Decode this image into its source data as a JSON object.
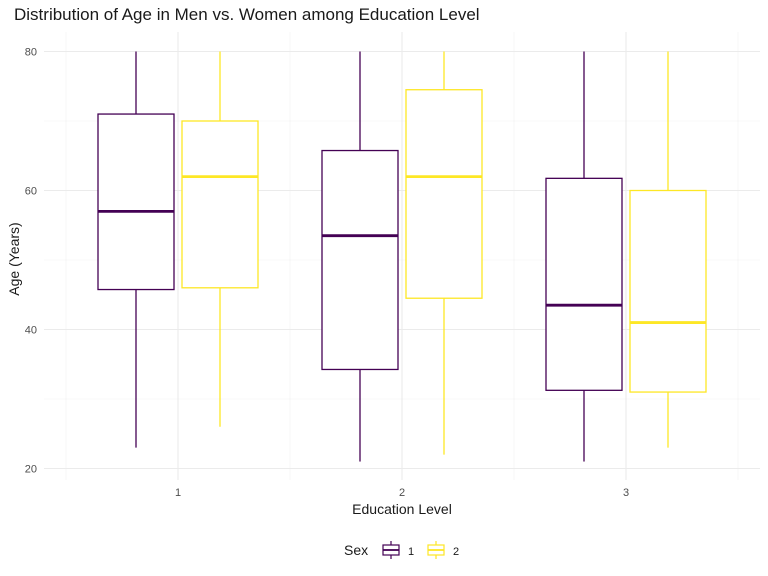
{
  "chart_data": {
    "type": "boxplot",
    "title": "Distribution of Age in Men vs. Women among Education Level",
    "xlabel": "Education Level",
    "ylabel": "Age (Years)",
    "categories": [
      "1",
      "2",
      "3"
    ],
    "ylim": [
      20,
      80
    ],
    "yticks": [
      20,
      40,
      60,
      80
    ],
    "yticks_labels": [
      "20",
      "40",
      "60",
      "80"
    ],
    "grid": true,
    "legend": {
      "title": "Sex",
      "position": "bottom"
    },
    "series": [
      {
        "name": "1",
        "color": "#440154",
        "boxes": [
          {
            "whisker_low": 23,
            "q1": 45.75,
            "median": 57,
            "q3": 71,
            "whisker_high": 80
          },
          {
            "whisker_low": 21,
            "q1": 34.25,
            "median": 53.5,
            "q3": 65.75,
            "whisker_high": 80
          },
          {
            "whisker_low": 21,
            "q1": 31.25,
            "median": 43.5,
            "q3": 61.75,
            "whisker_high": 80
          }
        ]
      },
      {
        "name": "2",
        "color": "#FDE725",
        "boxes": [
          {
            "whisker_low": 26,
            "q1": 46,
            "median": 62,
            "q3": 70,
            "whisker_high": 80
          },
          {
            "whisker_low": 22,
            "q1": 44.5,
            "median": 62,
            "q3": 74.5,
            "whisker_high": 80
          },
          {
            "whisker_low": 23,
            "q1": 31,
            "median": 41,
            "q3": 60,
            "whisker_high": 80
          }
        ]
      }
    ]
  }
}
